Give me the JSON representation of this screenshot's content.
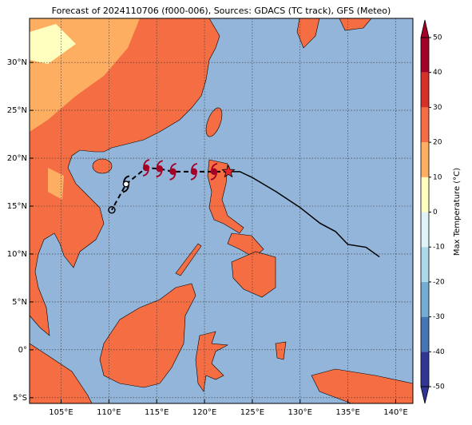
{
  "chart_data": {
    "type": "map",
    "title": "Forecast of 2024110706 (f000-006), Sources: GDACS (TC track), GFS (Meteo)",
    "xlim": [
      101.7,
      141.8
    ],
    "ylim": [
      -5.6,
      34.6
    ],
    "xticks": [
      {
        "value": 105,
        "label": "105°E"
      },
      {
        "value": 110,
        "label": "110°E"
      },
      {
        "value": 115,
        "label": "115°E"
      },
      {
        "value": 120,
        "label": "120°E"
      },
      {
        "value": 125,
        "label": "125°E"
      },
      {
        "value": 130,
        "label": "130°E"
      },
      {
        "value": 135,
        "label": "135°E"
      },
      {
        "value": 140,
        "label": "140°E"
      }
    ],
    "yticks": [
      {
        "value": -5,
        "label": "5°S"
      },
      {
        "value": 0,
        "label": "0°"
      },
      {
        "value": 5,
        "label": "5°N"
      },
      {
        "value": 10,
        "label": "10°N"
      },
      {
        "value": 15,
        "label": "15°N"
      },
      {
        "value": 20,
        "label": "20°N"
      },
      {
        "value": 25,
        "label": "25°N"
      },
      {
        "value": 30,
        "label": "30°N"
      }
    ],
    "grid": true,
    "colorbar": {
      "label": "Max Temperature (°C)",
      "bins": [
        -50,
        -40,
        -30,
        -20,
        -10,
        0,
        10,
        20,
        30,
        40,
        50
      ],
      "colors": [
        "#313695",
        "#4575b4",
        "#74add1",
        "#abd9e9",
        "#e0f3f8",
        "#ffffbf",
        "#fdae61",
        "#f46d43",
        "#d73027",
        "#a50026"
      ]
    },
    "observed_track": {
      "color": "#000000",
      "lon": [
        138.3,
        136.9,
        135.0,
        133.7,
        132.1,
        130.0,
        127.5,
        124.97,
        123.7,
        122.5
      ],
      "lat": [
        9.7,
        10.7,
        11.0,
        12.35,
        13.2,
        14.85,
        16.5,
        18.0,
        18.6,
        18.6
      ]
    },
    "forecast_track": {
      "color": "#000000",
      "marker_color": "#a50026",
      "lon": [
        122.5,
        121.0,
        118.9,
        116.7,
        115.3,
        113.9,
        111.8,
        110.3
      ],
      "lat": [
        18.6,
        18.6,
        18.6,
        18.6,
        18.9,
        19.0,
        17.3,
        14.6
      ]
    }
  }
}
